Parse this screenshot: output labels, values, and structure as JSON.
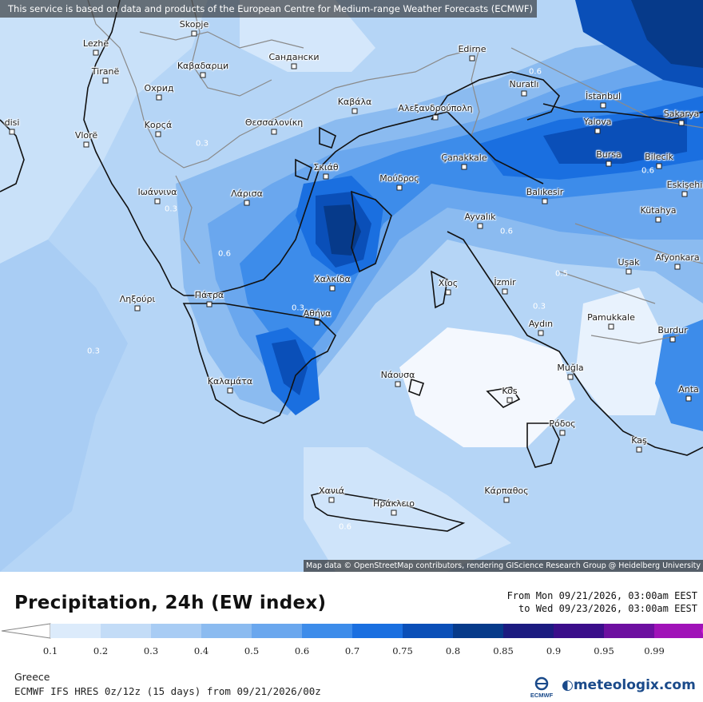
{
  "banner": "This service is based on data and products of the European Centre for Medium-range Weather Forecasts (ECMWF)",
  "attribution": "Map data © OpenStreetMap contributors, rendering GIScience Research Group @ Heidelberg University",
  "title": "Precipitation, 24h (EW index)",
  "date_from": "From Mon 09/21/2026, 03:00am EEST",
  "date_to": "to Wed 09/23/2026, 03:00am EEST",
  "region": "Greece",
  "model": "ECMWF IFS HRES 0z/12z (15 days) from 09/21/2026/00z",
  "brand": "meteologix.com",
  "ecmwf_logo_text": "ECMWF",
  "scale": {
    "labels": [
      "0.1",
      "0.2",
      "0.3",
      "0.4",
      "0.5",
      "0.6",
      "0.7",
      "0.75",
      "0.8",
      "0.85",
      "0.9",
      "0.95",
      "0.99"
    ],
    "colors": [
      "#dcebfb",
      "#c3dcf7",
      "#a8ccf4",
      "#8bbbf0",
      "#6aa7ee",
      "#3d8cea",
      "#1a6fe0",
      "#0a4fb8",
      "#063a8a",
      "#1b1b80",
      "#3a0e8a",
      "#6d0fa0",
      "#a012b8",
      "#d21fd8"
    ]
  },
  "cities": [
    {
      "name": "Lezhë"
    },
    {
      "name": "Skopje"
    },
    {
      "name": "Tiranë"
    },
    {
      "name": "Καβαδαρци"
    },
    {
      "name": "Сандански"
    },
    {
      "name": "Edirne"
    },
    {
      "name": "Охрид"
    },
    {
      "name": "Nuratlı"
    },
    {
      "name": "İstanbul"
    },
    {
      "name": "Καβάλα"
    },
    {
      "name": "Αλεξανδρούπολη"
    },
    {
      "name": "Sakarya"
    },
    {
      "name": "Κορςά"
    },
    {
      "name": "Θεσσαλονίκη"
    },
    {
      "name": "Yalova"
    },
    {
      "name": "Vlorë"
    },
    {
      "name": "Bursa"
    },
    {
      "name": "Bilecik"
    },
    {
      "name": "Çanakkale"
    },
    {
      "name": "Σκιάθ"
    },
    {
      "name": "Μούδρος"
    },
    {
      "name": "Eskişehi"
    },
    {
      "name": "Ιωάννινα"
    },
    {
      "name": "Λάρισα"
    },
    {
      "name": "Balıkesir"
    },
    {
      "name": "Kütahya"
    },
    {
      "name": "Ayvalık"
    },
    {
      "name": "Uşak"
    },
    {
      "name": "Afyonkara"
    },
    {
      "name": "Χαλκίδα"
    },
    {
      "name": "Χίος"
    },
    {
      "name": "İzmir"
    },
    {
      "name": "Ληξούρι"
    },
    {
      "name": "Πάτρα"
    },
    {
      "name": "Αθήνα"
    },
    {
      "name": "Aydın"
    },
    {
      "name": "Pamukkale"
    },
    {
      "name": "Burdur"
    },
    {
      "name": "Muğla"
    },
    {
      "name": "Νάουσα"
    },
    {
      "name": "Καλαμάτα"
    },
    {
      "name": "Kos"
    },
    {
      "name": "Ρόδος"
    },
    {
      "name": "Anta"
    },
    {
      "name": "Kaş"
    },
    {
      "name": "Χανιά"
    },
    {
      "name": "Κάρπαθος"
    },
    {
      "name": "Ηράκλειο"
    },
    {
      "name": "disi"
    }
  ],
  "isolines": [
    {
      "value": "0.3"
    },
    {
      "value": "0.6"
    },
    {
      "value": "0.3"
    },
    {
      "value": "0.6"
    },
    {
      "value": "0.3"
    },
    {
      "value": "0.6"
    },
    {
      "value": "0.5"
    },
    {
      "value": "0.3"
    },
    {
      "value": "0.3"
    },
    {
      "value": "0.6"
    },
    {
      "value": "0.6"
    }
  ]
}
